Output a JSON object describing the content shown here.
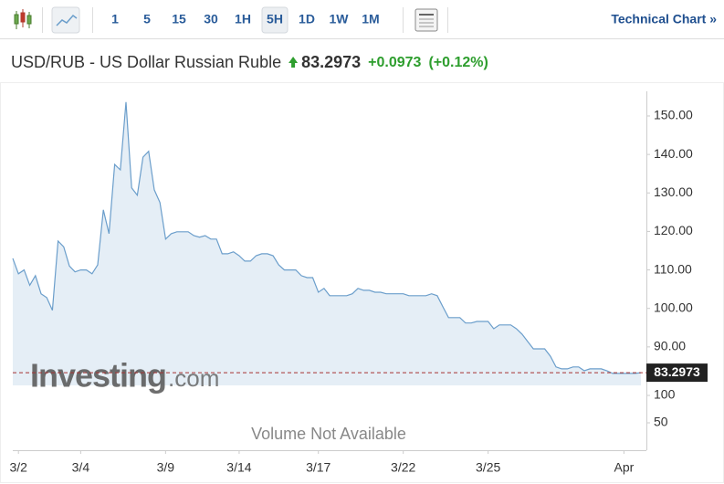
{
  "toolbar": {
    "intervals": [
      "1",
      "5",
      "15",
      "30",
      "1H",
      "5H",
      "1D",
      "1W",
      "1M"
    ],
    "active": "5H",
    "link": "Technical Chart »"
  },
  "header": {
    "title": "USD/RUB - US Dollar Russian Ruble",
    "price": "83.2973",
    "change": "+0.0973",
    "change_pct": "(+0.12%)"
  },
  "watermark": {
    "brand": "Investing",
    "suffix": ".com"
  },
  "chart_data": {
    "type": "area",
    "color": "#6b9ecb",
    "fill": "#e5eef6",
    "categories": [
      null,
      "3/2",
      null,
      null,
      null,
      null,
      null,
      null,
      null,
      null,
      null,
      null,
      "3/4",
      null,
      null,
      null,
      null,
      null,
      null,
      null,
      null,
      null,
      null,
      null,
      null,
      null,
      null,
      "3/9",
      null,
      null,
      null,
      null,
      null,
      null,
      null,
      null,
      null,
      null,
      null,
      null,
      "3/14",
      null,
      null,
      null,
      null,
      null,
      null,
      null,
      null,
      null,
      null,
      null,
      null,
      null,
      "3/17",
      null,
      null,
      null,
      null,
      null,
      null,
      null,
      null,
      null,
      null,
      null,
      null,
      null,
      null,
      "3/22",
      null,
      null,
      null,
      null,
      null,
      null,
      null,
      null,
      null,
      null,
      null,
      null,
      null,
      null,
      "3/25",
      null,
      null,
      null,
      null,
      null,
      null,
      null,
      null,
      null,
      null,
      null,
      null,
      null,
      null,
      null,
      null,
      null,
      null,
      null,
      null,
      null,
      null,
      null,
      "Apr",
      null,
      null,
      null
    ],
    "values": [
      113.0,
      109,
      110,
      106,
      108.5,
      103.8,
      102.8,
      99.5,
      117.5,
      116,
      111,
      109.5,
      110,
      110,
      109,
      111.3,
      125.6,
      119.4,
      137.4,
      136,
      153.6,
      131.3,
      129.4,
      139.3,
      140.8,
      130.8,
      127.5,
      118,
      119.4,
      119.9,
      119.9,
      119.9,
      118.9,
      118.5,
      118.9,
      118,
      118,
      114.2,
      114.2,
      114.7,
      113.7,
      112.3,
      112.3,
      113.7,
      114.2,
      114.2,
      113.7,
      111.3,
      110,
      110,
      110,
      108.5,
      108,
      108,
      104.2,
      105.2,
      103.3,
      103.3,
      103.3,
      103.3,
      103.8,
      105.2,
      104.7,
      104.7,
      104.2,
      104.2,
      103.8,
      103.8,
      103.8,
      103.8,
      103.3,
      103.3,
      103.3,
      103.3,
      103.8,
      103.3,
      100.4,
      97.6,
      97.6,
      97.6,
      96.2,
      96.2,
      96.6,
      96.6,
      96.6,
      94.7,
      95.7,
      95.7,
      95.7,
      94.7,
      93.3,
      91.4,
      89.5,
      89.5,
      89.5,
      87.6,
      84.8,
      84.3,
      84.3,
      84.8,
      84.8,
      83.8,
      84.3,
      84.3,
      84.3,
      83.8,
      83.1,
      83.1,
      83.1,
      83.1,
      83.1,
      83.2973
    ],
    "ylim": [
      80,
      156.4
    ],
    "yticks": [
      {
        "value": 90,
        "label": "90.00"
      },
      {
        "value": 100,
        "label": "100.00"
      },
      {
        "value": 110,
        "label": "110.00"
      },
      {
        "value": 120,
        "label": "120.00"
      },
      {
        "value": 130,
        "label": "130.00"
      },
      {
        "value": 140,
        "label": "140.00"
      },
      {
        "value": 150,
        "label": "150.00"
      }
    ],
    "price_line": {
      "value": 83.2973,
      "label": "83.2973",
      "color": "#a83232"
    },
    "volume": {
      "ylim": [
        0,
        160
      ],
      "yticks": [
        50,
        100
      ],
      "note": "Volume Not Available"
    }
  }
}
